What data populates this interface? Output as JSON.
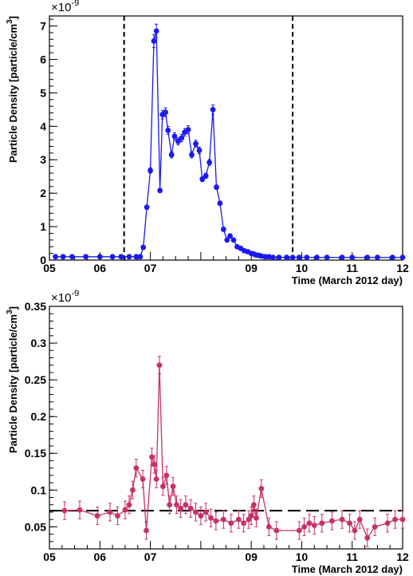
{
  "colors": {
    "top_series": "#1a1aee",
    "bottom_series": "#c8306a",
    "axis": "#000000",
    "reference_line": "#000000"
  },
  "chart_data": [
    {
      "type": "line",
      "xlabel": "Time (March 2012 day)",
      "ylabel": "Particle Density [particle/cm",
      "ylabel_sup": "3",
      "ylabel_close": "]",
      "y_exponent": "×10",
      "y_exponent_sup": "-9",
      "xlim": [
        5.0,
        12.0
      ],
      "ylim": [
        0,
        7.3
      ],
      "x_ticks": [
        5,
        6,
        7,
        8,
        9,
        10,
        11,
        12
      ],
      "x_tick_labels": [
        "05",
        "06",
        "07",
        "",
        "09",
        "10",
        "11",
        "12"
      ],
      "y_ticks": [
        0,
        1,
        2,
        3,
        4,
        5,
        6,
        7
      ],
      "y_tick_labels": [
        "0",
        "1",
        "2",
        "3",
        "4",
        "5",
        "6",
        "7"
      ],
      "vertical_lines": [
        6.48,
        9.82
      ],
      "grid": false,
      "series": [
        {
          "x": [
            5.12,
            5.27,
            5.45,
            5.72,
            6.0,
            6.25,
            6.42,
            6.58,
            6.72,
            6.8,
            6.86,
            6.93,
            7.0,
            7.07,
            7.12,
            7.19,
            7.24,
            7.3,
            7.35,
            7.42,
            7.48,
            7.55,
            7.62,
            7.68,
            7.75,
            7.82,
            7.9,
            7.97,
            8.03,
            8.1,
            8.17,
            8.24,
            8.31,
            8.38,
            8.45,
            8.52,
            8.58,
            8.65,
            8.72,
            8.79,
            8.86,
            8.93,
            9.0,
            9.05,
            9.1,
            9.15,
            9.2,
            9.28,
            9.35,
            9.43,
            9.55,
            9.7,
            9.82,
            9.95,
            10.1,
            10.3,
            10.5,
            10.8,
            11.0,
            11.3,
            11.5,
            11.8,
            12.0
          ],
          "y": [
            0.1,
            0.1,
            0.1,
            0.1,
            0.1,
            0.1,
            0.1,
            0.1,
            0.1,
            0.1,
            0.38,
            1.58,
            2.68,
            6.55,
            6.85,
            2.08,
            4.35,
            4.42,
            3.88,
            3.15,
            3.7,
            3.55,
            3.65,
            3.82,
            3.9,
            3.15,
            3.48,
            3.28,
            2.42,
            2.52,
            2.92,
            4.5,
            2.18,
            1.7,
            0.92,
            0.6,
            0.72,
            0.6,
            0.4,
            0.35,
            0.28,
            0.25,
            0.2,
            0.18,
            0.15,
            0.14,
            0.12,
            0.1,
            0.1,
            0.08,
            0.08,
            0.08,
            0.08,
            0.08,
            0.08,
            0.08,
            0.08,
            0.08,
            0.08,
            0.08,
            0.08,
            0.08,
            0.08
          ]
        }
      ]
    },
    {
      "type": "line",
      "xlabel": "Time (March 2012 day)",
      "ylabel": "Particle Density [particle/cm",
      "ylabel_sup": "3",
      "ylabel_close": "]",
      "y_exponent": "×10",
      "y_exponent_sup": "-9",
      "xlim": [
        5.0,
        12.0
      ],
      "ylim": [
        0.02,
        0.35
      ],
      "x_ticks": [
        5,
        6,
        7,
        8,
        9,
        10,
        11,
        12
      ],
      "x_tick_labels": [
        "05",
        "06",
        "07",
        "",
        "09",
        "10",
        "11",
        "12"
      ],
      "y_ticks": [
        0.05,
        0.1,
        0.15,
        0.2,
        0.25,
        0.3,
        0.35
      ],
      "y_tick_labels": [
        "0.05",
        "0.1",
        "0.15",
        "0.2",
        "0.25",
        "0.3",
        "0.35"
      ],
      "reference_y": 0.072,
      "grid": false,
      "series": [
        {
          "x": [
            5.3,
            5.6,
            5.95,
            6.2,
            6.35,
            6.5,
            6.58,
            6.65,
            6.72,
            6.85,
            6.92,
            7.03,
            7.08,
            7.12,
            7.18,
            7.25,
            7.32,
            7.38,
            7.45,
            7.52,
            7.6,
            7.7,
            7.8,
            7.9,
            8.0,
            8.1,
            8.2,
            8.3,
            8.45,
            8.6,
            8.75,
            8.85,
            8.95,
            9.0,
            9.05,
            9.1,
            9.2,
            9.35,
            9.5,
            9.95,
            10.05,
            10.15,
            10.25,
            10.4,
            10.6,
            10.8,
            10.95,
            11.05,
            11.15,
            11.3,
            11.45,
            11.7,
            11.85,
            12.0
          ],
          "y": [
            0.072,
            0.073,
            0.065,
            0.07,
            0.065,
            0.073,
            0.08,
            0.1,
            0.13,
            0.115,
            0.045,
            0.145,
            0.135,
            0.115,
            0.27,
            0.105,
            0.12,
            0.08,
            0.105,
            0.08,
            0.075,
            0.08,
            0.075,
            0.07,
            0.065,
            0.07,
            0.062,
            0.058,
            0.06,
            0.055,
            0.06,
            0.055,
            0.06,
            0.065,
            0.08,
            0.062,
            0.102,
            0.05,
            0.045,
            0.045,
            0.05,
            0.055,
            0.052,
            0.055,
            0.058,
            0.06,
            0.055,
            0.045,
            0.06,
            0.035,
            0.05,
            0.055,
            0.06,
            0.06
          ]
        }
      ]
    }
  ]
}
